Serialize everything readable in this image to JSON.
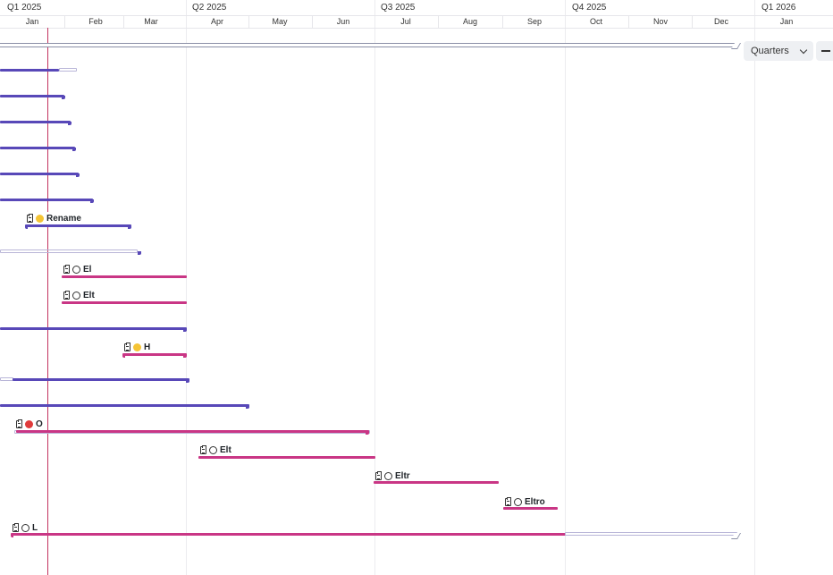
{
  "timeline": {
    "quarters": [
      "Q1 2025",
      "Q2 2025",
      "Q3 2025",
      "Q4 2025",
      "Q1 2026"
    ],
    "months": [
      "Jan",
      "Feb",
      "Mar",
      "Apr",
      "May",
      "Jun",
      "Jul",
      "Aug",
      "Sep",
      "Oct",
      "Nov",
      "Dec",
      "Jan"
    ]
  },
  "controls": {
    "zoom_select_value": "Quarters"
  },
  "tasks": {
    "t7": "Rename",
    "t9": "El",
    "t10": "Elt",
    "t12": "H",
    "t15": "O",
    "t16": "Elt",
    "t17": "Eltr",
    "t18": "Eltro",
    "t19": "L"
  },
  "colors": {
    "purple_bar": "#5848b8",
    "pink_bar": "#c93685",
    "today_line": "#c2325f",
    "status_in_progress": "#f5c435",
    "status_blocked": "#e03b3b"
  }
}
